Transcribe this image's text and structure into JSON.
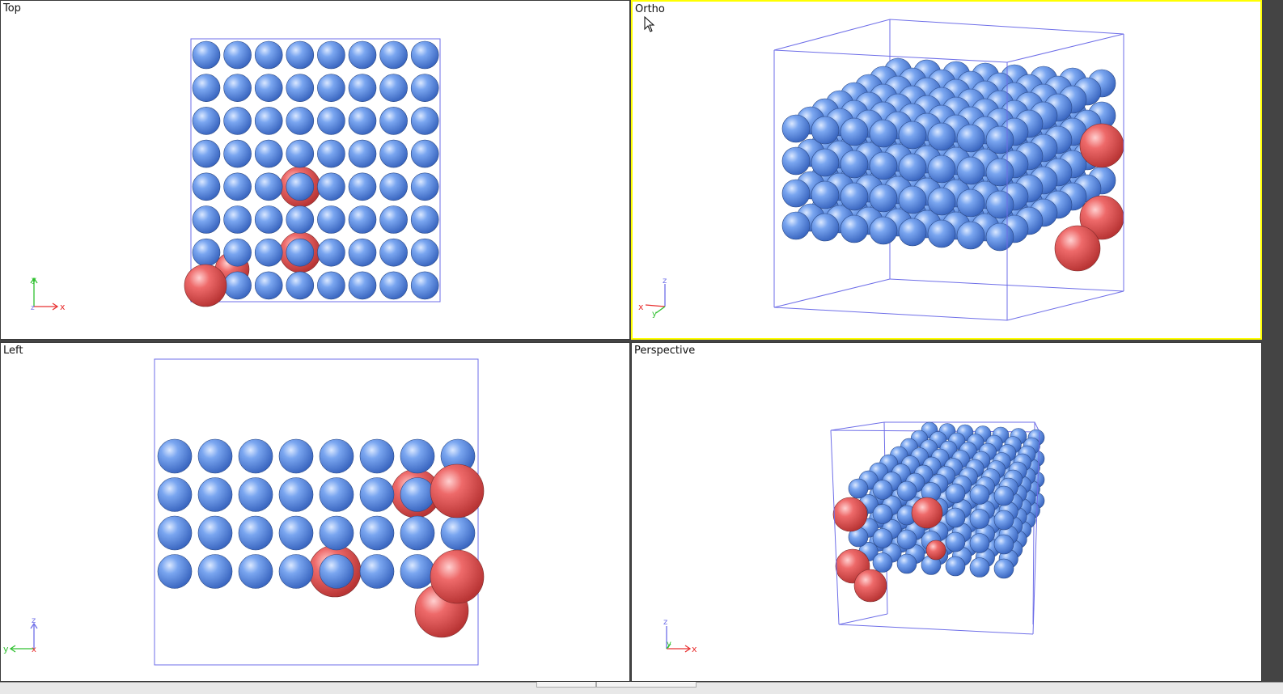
{
  "viewports": {
    "top": {
      "title": "Top",
      "axes": {
        "horizontal": "x",
        "vertical": "y",
        "depth": "z"
      }
    },
    "ortho": {
      "title": "Ortho",
      "active": true,
      "axes": {
        "horizontal": "x",
        "vertical": "z",
        "depth": "y"
      }
    },
    "left": {
      "title": "Left",
      "axes": {
        "horizontal": "y",
        "vertical": "z",
        "depth": "x"
      }
    },
    "perspective": {
      "title": "Perspective",
      "axes": {
        "horizontal": "x",
        "vertical": "z",
        "depth": "y"
      }
    }
  },
  "atoms": {
    "host_color": "#5b8fe6",
    "defect_color": "#e85454",
    "box_color": "#6e6ee8"
  },
  "axis_colors": {
    "x": "#e83030",
    "y": "#30c030",
    "z": "#6e6ee8"
  }
}
